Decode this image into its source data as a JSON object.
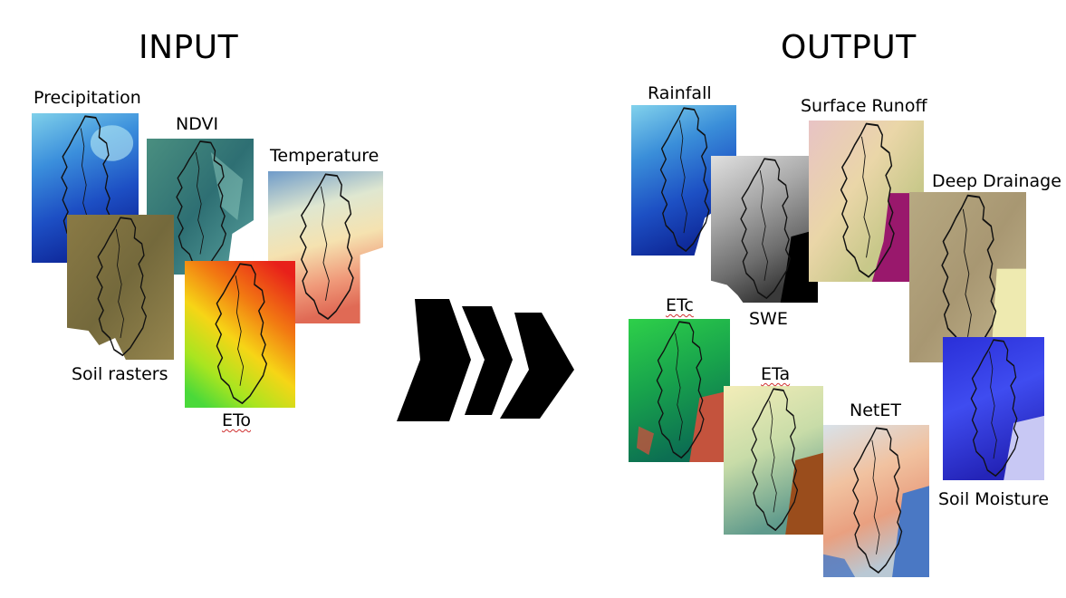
{
  "input": {
    "title": "INPUT",
    "layers": {
      "precipitation": "Precipitation",
      "ndvi": "NDVI",
      "temperature": "Temperature",
      "soil": "Soil rasters",
      "eto": "ETo"
    }
  },
  "output": {
    "title": "OUTPUT",
    "layers": {
      "rainfall": "Rainfall",
      "runoff": "Surface Runoff",
      "drainage": "Deep Drainage",
      "swe": "SWE",
      "etc": "ETc",
      "eta": "ETa",
      "netet": "NetET",
      "moisture": "Soil Moisture"
    }
  },
  "colors": {
    "arrow": "#000000",
    "boundary": "#111111"
  }
}
